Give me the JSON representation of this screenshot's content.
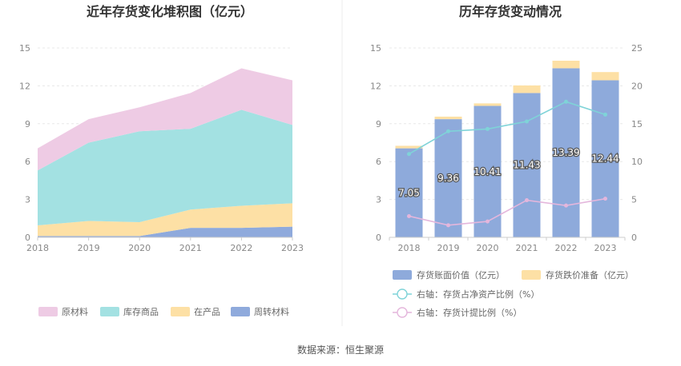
{
  "source_label": "数据来源：恒生聚源",
  "chart_data": [
    {
      "type": "area",
      "stacked": true,
      "title": "近年存货变化堆积图（亿元）",
      "x": [
        "2018",
        "2019",
        "2020",
        "2021",
        "2022",
        "2023"
      ],
      "ylim": [
        0,
        15
      ],
      "yticks": [
        0,
        3,
        6,
        9,
        12,
        15
      ],
      "grid": true,
      "legend_position": "bottom",
      "series": [
        {
          "name": "周转材料",
          "color": "#8faadc",
          "values": [
            0.1,
            0.1,
            0.1,
            0.75,
            0.75,
            0.85
          ]
        },
        {
          "name": "在产品",
          "color": "#fde0a5",
          "values": [
            0.85,
            1.2,
            1.1,
            1.45,
            1.75,
            1.85
          ]
        },
        {
          "name": "库存商品",
          "color": "#a3e1e2",
          "values": [
            4.35,
            6.2,
            7.2,
            6.4,
            7.6,
            6.2
          ]
        },
        {
          "name": "原材料",
          "color": "#eecbe4",
          "values": [
            1.75,
            1.86,
            1.9,
            2.83,
            3.29,
            3.54
          ]
        }
      ],
      "legend_order": [
        "原材料",
        "库存商品",
        "在产品",
        "周转材料"
      ]
    },
    {
      "type": "bar",
      "stacked": true,
      "title": "历年存货变动情况",
      "categories": [
        "2018",
        "2019",
        "2020",
        "2021",
        "2022",
        "2023"
      ],
      "ylim": [
        0,
        15
      ],
      "yticks": [
        0,
        3,
        6,
        9,
        12,
        15
      ],
      "y2lim": [
        0,
        25
      ],
      "y2ticks": [
        0,
        5,
        10,
        15,
        20,
        25
      ],
      "grid": true,
      "legend_position": "bottom",
      "series": [
        {
          "name": "存货账面价值（亿元）",
          "color": "#8eaadb",
          "values": [
            7.05,
            9.36,
            10.41,
            11.43,
            13.39,
            12.44
          ],
          "show_labels": true
        },
        {
          "name": "存货跌价准备（亿元）",
          "color": "#fde0a5",
          "values": [
            0.2,
            0.2,
            0.2,
            0.6,
            0.6,
            0.65
          ]
        }
      ],
      "lines": [
        {
          "name": "右轴：存货占净资产比例（%）",
          "color": "#7fd3d8",
          "axis": "right",
          "values": [
            11,
            14,
            14.3,
            15.3,
            17.9,
            16.2
          ]
        },
        {
          "name": "右轴：存货计提比例（%）",
          "color": "#e4b6dc",
          "axis": "right",
          "values": [
            2.8,
            1.6,
            2.1,
            4.9,
            4.2,
            5.1
          ]
        }
      ]
    }
  ]
}
